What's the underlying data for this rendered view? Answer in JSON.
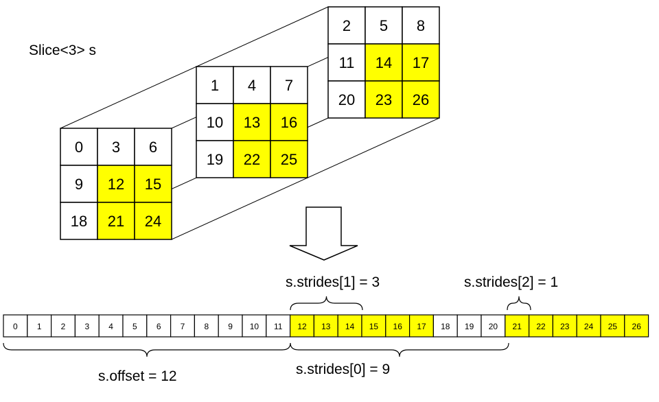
{
  "title": "Slice<3> s",
  "colors": {
    "highlight": "#ffff00",
    "plain": "#ffffff",
    "line": "#000000"
  },
  "matrices": [
    {
      "name": "front-matrix",
      "values": [
        [
          0,
          3,
          6
        ],
        [
          9,
          12,
          15
        ],
        [
          18,
          21,
          24
        ]
      ]
    },
    {
      "name": "middle-matrix",
      "values": [
        [
          1,
          4,
          7
        ],
        [
          10,
          13,
          16
        ],
        [
          19,
          22,
          25
        ]
      ]
    },
    {
      "name": "back-matrix",
      "values": [
        [
          2,
          5,
          8
        ],
        [
          11,
          14,
          17
        ],
        [
          20,
          23,
          26
        ]
      ]
    }
  ],
  "highlighted": [
    12,
    13,
    14,
    15,
    16,
    17,
    21,
    22,
    23,
    24,
    25,
    26
  ],
  "array": [
    0,
    1,
    2,
    3,
    4,
    5,
    6,
    7,
    8,
    9,
    10,
    11,
    12,
    13,
    14,
    15,
    16,
    17,
    18,
    19,
    20,
    21,
    22,
    23,
    24,
    25,
    26
  ],
  "labels": {
    "stride1": "s.strides[1] = 3",
    "stride2": "s.strides[2] = 1",
    "stride0": "s.strides[0] = 9",
    "offset": "s.offset = 12"
  }
}
